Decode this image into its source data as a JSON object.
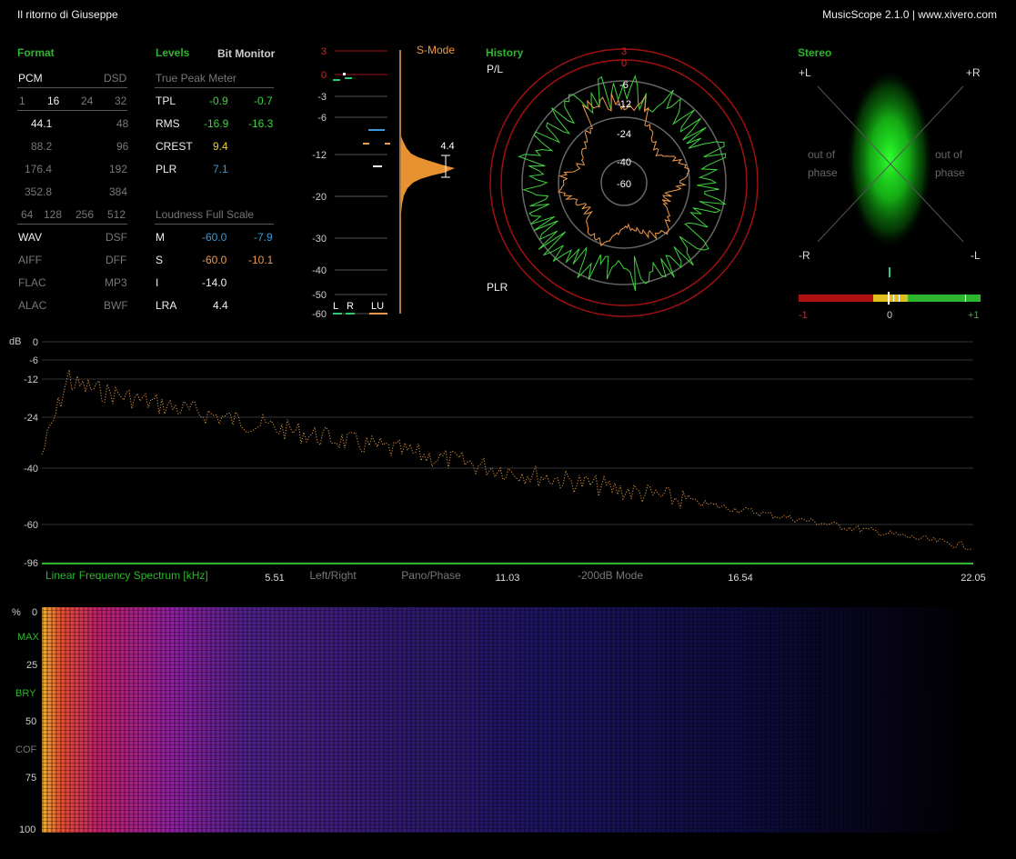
{
  "window": {
    "title": "Il ritorno di Giuseppe",
    "app": "MusicScope 2.1.0 | www.xivero.com"
  },
  "format": {
    "header": "Format",
    "pcm": "PCM",
    "dsd": "DSD",
    "bits": [
      "1",
      "16",
      "24",
      "32"
    ],
    "rates": [
      [
        "44.1",
        "48"
      ],
      [
        "88.2",
        "96"
      ],
      [
        "176.4",
        "192"
      ],
      [
        "352.8",
        "384"
      ]
    ],
    "dsd_rates": [
      "64",
      "128",
      "256",
      "512"
    ],
    "containers": [
      [
        "WAV",
        "DSF"
      ],
      [
        "AIFF",
        "DFF"
      ],
      [
        "FLAC",
        "MP3"
      ],
      [
        "ALAC",
        "BWF"
      ]
    ]
  },
  "levels": {
    "header": "Levels",
    "bit_monitor": "Bit Monitor",
    "true_peak_label": "True Peak Meter",
    "rows": [
      {
        "label": "TPL",
        "l": "-0.9",
        "r": "-0.7"
      },
      {
        "label": "RMS",
        "l": "-16.9",
        "r": "-16.3"
      },
      {
        "label": "CREST",
        "l": "9.4",
        "r": ""
      },
      {
        "label": "PLR",
        "l": "7.1",
        "r": ""
      }
    ],
    "loudness_label": "Loudness Full Scale",
    "loudness_rows": [
      {
        "label": "M",
        "a": "-60.0",
        "b": "-7.9"
      },
      {
        "label": "S",
        "a": "-60.0",
        "b": "-10.1"
      },
      {
        "label": "I",
        "a": "-14.0",
        "b": ""
      },
      {
        "label": "LRA",
        "a": "4.4",
        "b": ""
      }
    ]
  },
  "meter": {
    "smode": "S-Mode",
    "scale": [
      "3",
      "0",
      "-3",
      "-6",
      "-12",
      "-20",
      "-30",
      "-40",
      "-50",
      "-60"
    ],
    "channels": [
      "L",
      "R",
      "LU"
    ],
    "plr_value": "4.4"
  },
  "history": {
    "header": "History",
    "pl": "P/L",
    "plr": "PLR",
    "rings": [
      "3",
      "0",
      "-6",
      "-12",
      "-24",
      "-40",
      "-60"
    ]
  },
  "stereo": {
    "header": "Stereo",
    "corners": [
      "+L",
      "+R",
      "-R",
      "-L"
    ],
    "out_of_phase": [
      "out of",
      "phase"
    ],
    "corr_ticks": [
      "-1",
      "0",
      "+1"
    ]
  },
  "spectrum": {
    "db_label": "dB",
    "db_ticks": [
      "0",
      "-6",
      "-12",
      "-24",
      "-40",
      "-60",
      "-96"
    ],
    "title": "Linear Frequency Spectrum [kHz]",
    "x_ticks": [
      "5.51",
      "11.03",
      "16.54",
      "22.05"
    ],
    "modes": [
      "Left/Right",
      "Pano/Phase",
      "-200dB Mode"
    ]
  },
  "sonogram": {
    "y_ticks": [
      "%",
      "0",
      "MAX",
      "25",
      "BRY",
      "50",
      "COF",
      "75",
      "100"
    ]
  },
  "colors": {
    "green": "#2db52d",
    "orange": "#ee9a4a",
    "blue": "#3a9ad8",
    "red": "#cc1010"
  }
}
